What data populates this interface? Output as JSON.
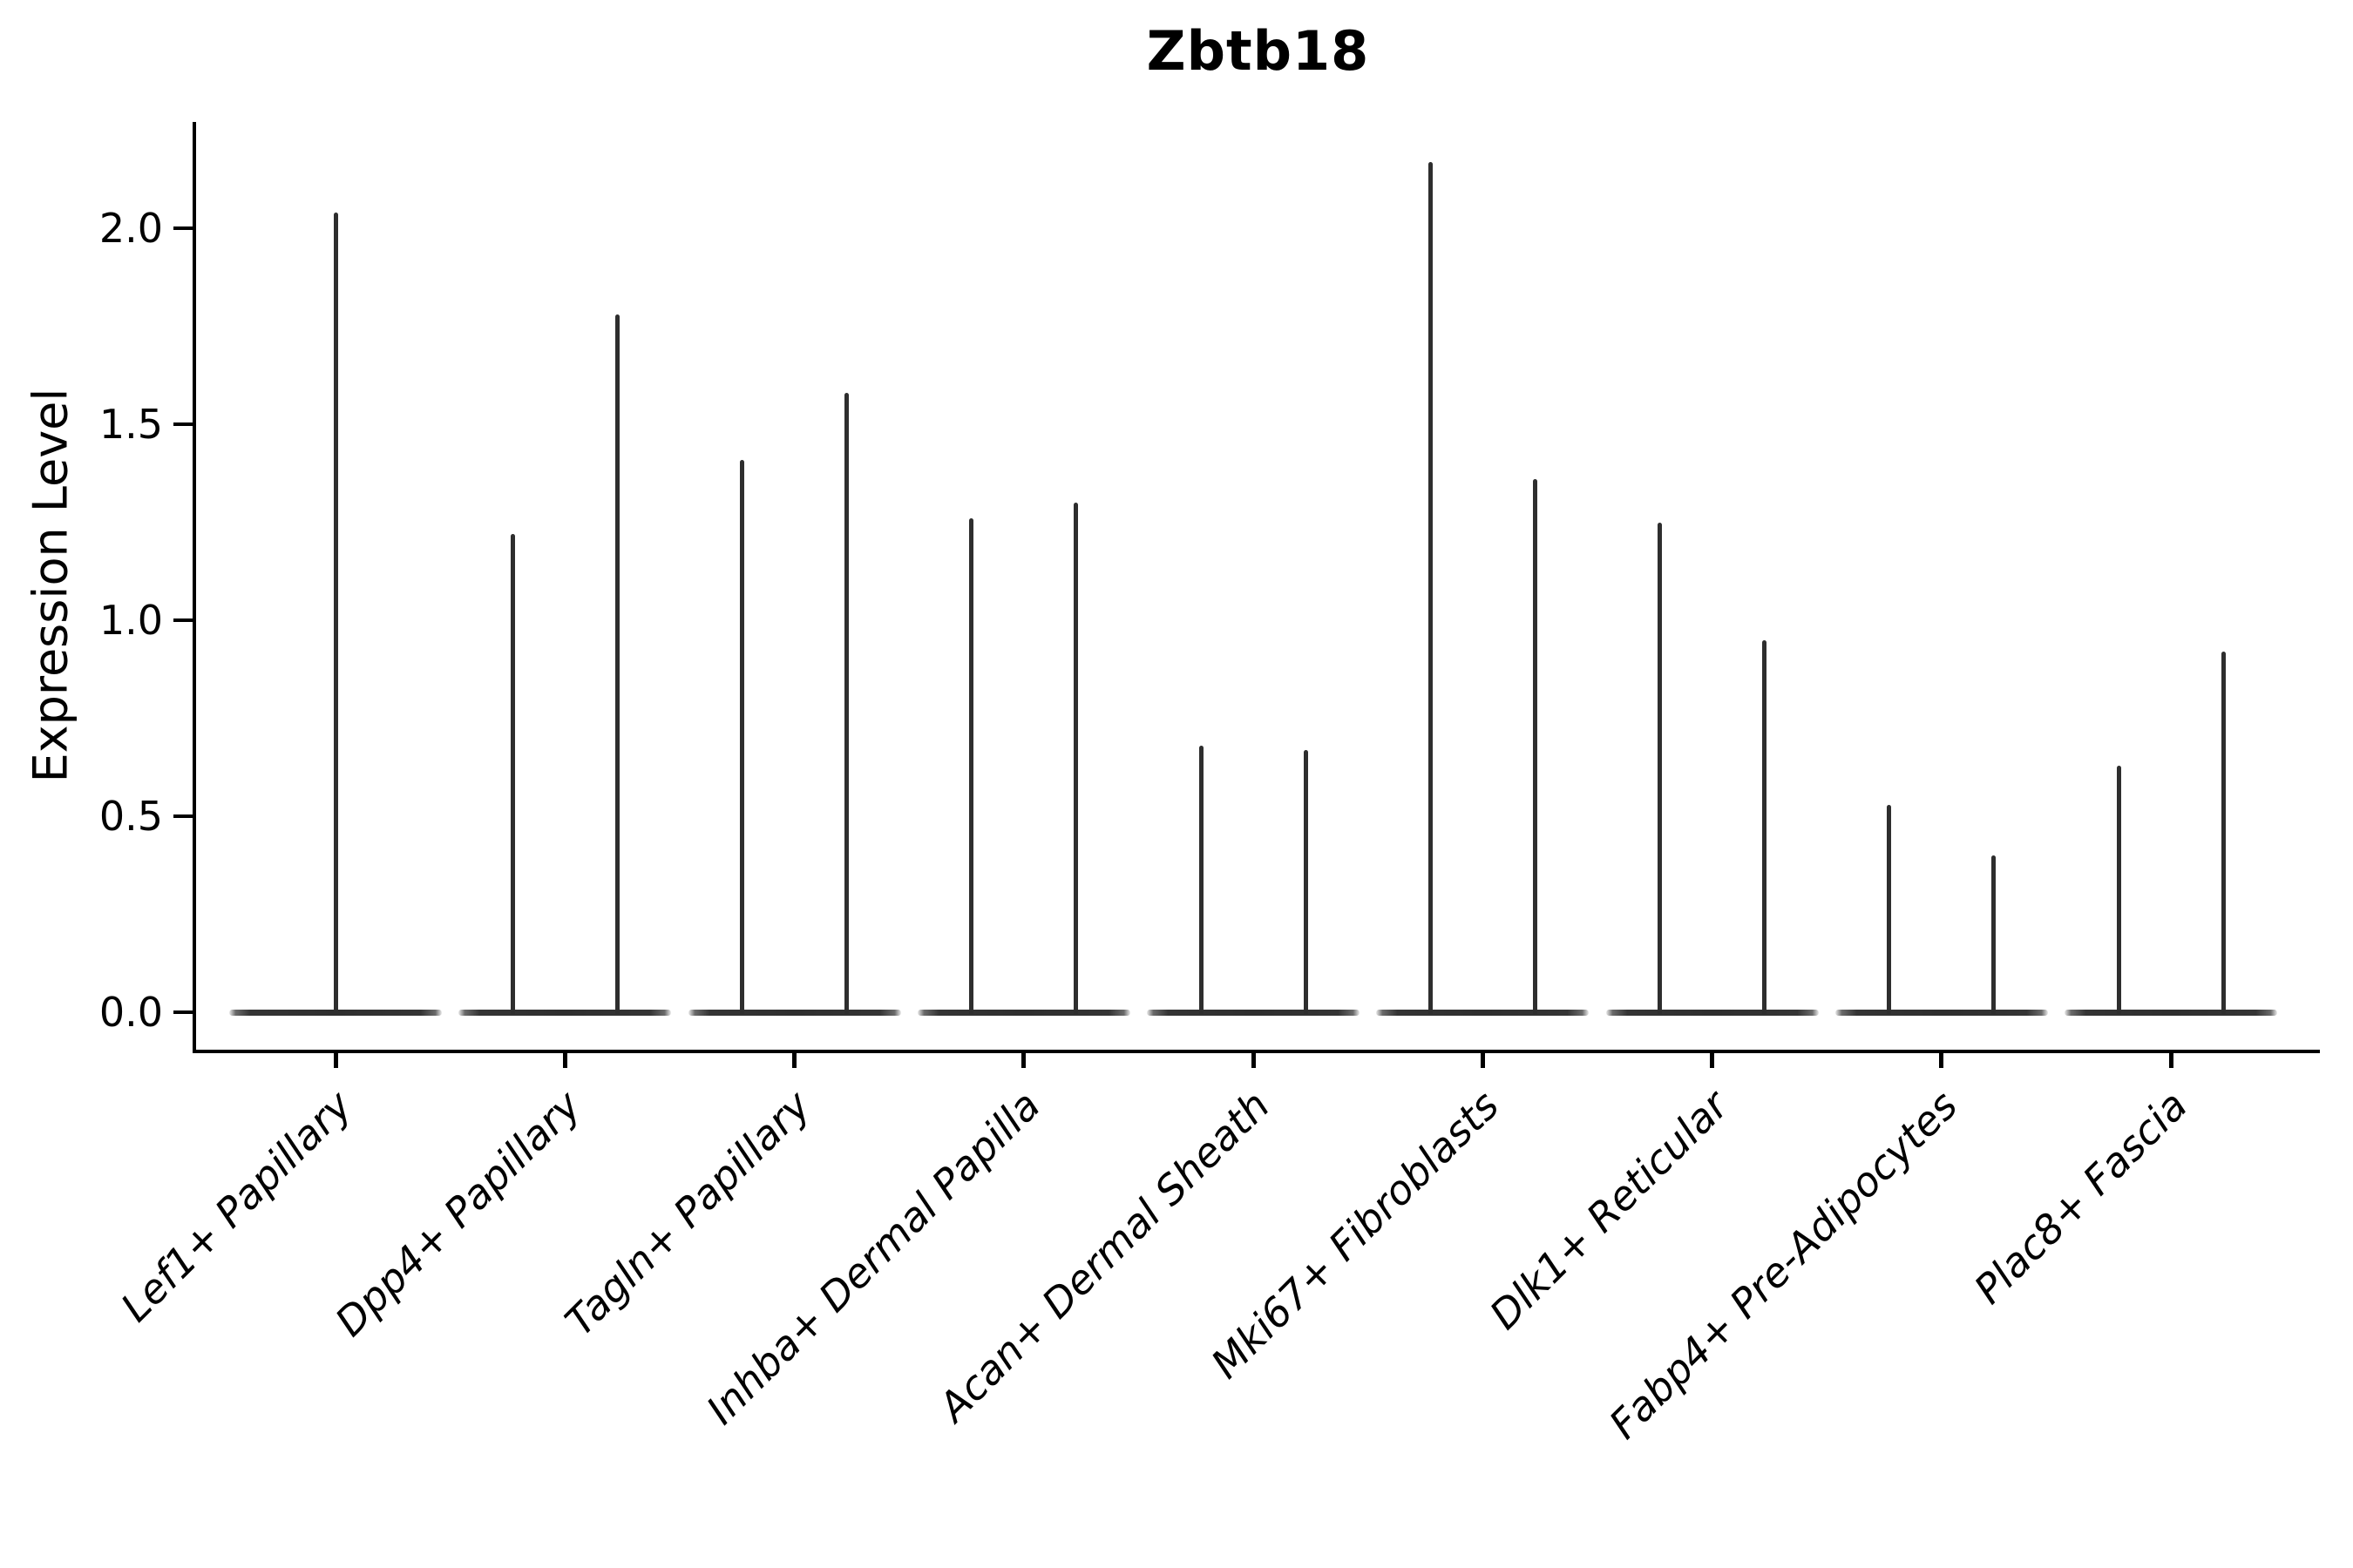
{
  "chart_data": {
    "type": "violin",
    "title": "Zbtb18",
    "ylabel": "Expression Level",
    "xlabel": "",
    "categories": [
      "Lef1+ Papillary",
      "Dpp4+ Papillary",
      "Tagln+ Papillary",
      "Inhba+ Dermal Papilla",
      "Acan+ Dermal Sheath",
      "Mki67+ Fibroblasts",
      "Dlk1+ Reticular",
      "Fabp4+ Pre-Adipocytes",
      "Plac8+ Fascia"
    ],
    "violin_max_expression": [
      [
        2.04
      ],
      [
        1.22,
        1.78
      ],
      [
        1.41,
        1.58
      ],
      [
        1.26,
        1.3
      ],
      [
        0.68,
        0.67
      ],
      [
        2.17,
        1.36
      ],
      [
        1.25,
        0.95
      ],
      [
        0.53,
        0.4
      ],
      [
        0.63,
        0.92
      ]
    ],
    "violin_body_value": 0.0,
    "yticks": [
      0.0,
      0.5,
      1.0,
      1.5,
      2.0
    ],
    "ytick_labels": [
      "0.0",
      "0.5",
      "1.0",
      "1.5",
      "2.0"
    ],
    "ylim": [
      -0.09,
      2.27
    ],
    "grid": false,
    "legend_position": "none",
    "colors": {
      "violin_line": "#2e2e2e",
      "spine": "#000000",
      "text": "#000000",
      "background": "#ffffff"
    }
  }
}
